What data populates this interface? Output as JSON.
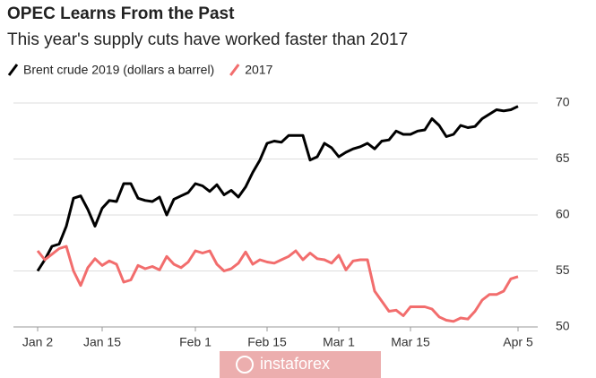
{
  "chart_data": {
    "type": "line",
    "title": "OPEC Learns From the Past",
    "subtitle": "This year's supply cuts have worked faster than 2017",
    "watermark": "instaforex",
    "categories": [
      "Jan 2",
      null,
      null,
      null,
      null,
      null,
      null,
      null,
      null,
      "Jan 15",
      null,
      null,
      null,
      null,
      null,
      null,
      null,
      null,
      null,
      null,
      null,
      null,
      "Feb 1",
      null,
      null,
      null,
      null,
      null,
      null,
      null,
      null,
      null,
      "Feb 15",
      null,
      null,
      null,
      null,
      null,
      null,
      null,
      null,
      null,
      "Mar 1",
      null,
      null,
      null,
      null,
      null,
      null,
      null,
      null,
      null,
      "Mar 15",
      null,
      null,
      null,
      null,
      null,
      null,
      null,
      null,
      null,
      null,
      null,
      null,
      null,
      null,
      "Apr 5"
    ],
    "series": [
      {
        "name": "Brent crude 2019 (dollars a barrel)",
        "color": "#000000",
        "values": [
          55.0,
          56.0,
          57.2,
          57.4,
          59.0,
          61.5,
          61.7,
          60.5,
          59.0,
          60.6,
          61.3,
          61.2,
          62.8,
          62.8,
          61.5,
          61.3,
          61.2,
          61.6,
          60.0,
          61.4,
          61.7,
          62.0,
          62.8,
          62.6,
          62.1,
          62.7,
          61.8,
          62.2,
          61.6,
          62.5,
          63.8,
          64.9,
          66.4,
          66.6,
          66.5,
          67.1,
          67.1,
          67.1,
          64.9,
          65.2,
          66.4,
          66.0,
          65.2,
          65.6,
          65.9,
          66.1,
          66.4,
          65.9,
          66.6,
          66.7,
          67.5,
          67.2,
          67.2,
          67.5,
          67.6,
          68.6,
          68.0,
          67.0,
          67.2,
          68.0,
          67.8,
          67.9,
          68.6,
          69.0,
          69.4,
          69.3,
          69.4,
          69.7
        ]
      },
      {
        "name": "2017",
        "color": "#f26d6d",
        "values": [
          56.8,
          56.0,
          56.5,
          57.0,
          57.2,
          55.0,
          53.7,
          55.3,
          56.1,
          55.5,
          55.9,
          55.6,
          54.0,
          54.2,
          55.5,
          55.2,
          55.4,
          55.1,
          56.3,
          55.6,
          55.3,
          55.8,
          56.8,
          56.6,
          56.8,
          55.6,
          55.0,
          55.2,
          55.7,
          56.7,
          55.6,
          56.0,
          55.8,
          55.7,
          56.0,
          56.3,
          56.8,
          56.0,
          56.6,
          56.1,
          56.0,
          55.7,
          56.4,
          55.1,
          55.9,
          56.0,
          56.0,
          53.2,
          52.3,
          51.4,
          51.5,
          51.0,
          51.8,
          51.8,
          51.8,
          51.6,
          50.9,
          50.6,
          50.5,
          50.8,
          50.7,
          51.4,
          52.4,
          52.9,
          52.9,
          53.2,
          54.3,
          54.5
        ]
      }
    ],
    "ylim": [
      50,
      70
    ],
    "yticks": [
      50,
      55,
      60,
      65,
      70
    ],
    "grid": true
  }
}
